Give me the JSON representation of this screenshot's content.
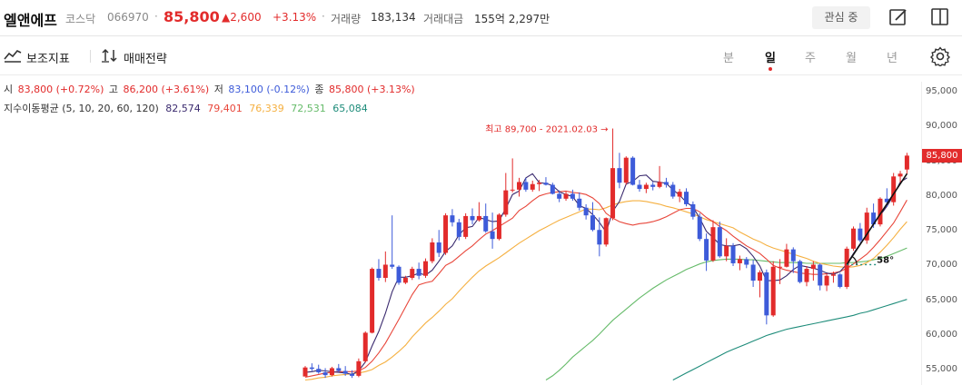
{
  "header": {
    "stock_name": "엘앤에프",
    "market": "코스닥",
    "code": "066970",
    "separator": "·",
    "price": "85,800",
    "change": "▲2,600",
    "change_pct": "+3.13%",
    "volume_label": "거래량",
    "volume": "183,134",
    "amount_label": "거래대금",
    "amount": "155억 2,297만",
    "favorite_label": "관심 중",
    "icons": [
      "edit-icon",
      "split-view-icon"
    ]
  },
  "toolbar": {
    "indicator_label": "보조지표",
    "trade_strategy_label": "매매전략",
    "periods": [
      "분",
      "일",
      "주",
      "월",
      "년"
    ],
    "active_period": "일",
    "icons": [
      "indicator-chart-icon",
      "arrows-updown-icon",
      "settings-icon"
    ]
  },
  "ohlc": {
    "open_label": "시",
    "open": "83,800 (+0.72%)",
    "high_label": "고",
    "high": "86,200 (+3.61%)",
    "low_label": "저",
    "low": "83,100 (-0.12%)",
    "close_label": "종",
    "close": "85,800 (+3.13%)"
  },
  "ma": {
    "label": "지수이동평균 (5, 10, 20, 60, 120)",
    "values": [
      "82,574",
      "79,401",
      "76,339",
      "72,531",
      "65,084"
    ],
    "colors": [
      "#3a2a6e",
      "#e8463a",
      "#f5b041",
      "#66bb6a",
      "#1e8c7a"
    ]
  },
  "colors": {
    "up": "#e22b2b",
    "down": "#3d5bd9"
  },
  "chart_data": {
    "type": "candlestick",
    "y_ticks": [
      "95,000",
      "90,000",
      "85,000",
      "80,000",
      "75,000",
      "70,000",
      "65,000",
      "60,000",
      "55,000"
    ],
    "ylim": [
      53500,
      96500
    ],
    "current_price_tag": "85,800",
    "high_annotation": "최고 89,700 - 2021.02.03 →",
    "trend_angle_label": "58°",
    "candles": [
      [
        54000,
        55500,
        54200,
        55300
      ],
      [
        55300,
        55900,
        54800,
        55100
      ],
      [
        55100,
        55700,
        54400,
        54600
      ],
      [
        54600,
        55200,
        53800,
        54200
      ],
      [
        54200,
        55400,
        54000,
        55200
      ],
      [
        55200,
        55800,
        54600,
        54800
      ],
      [
        54800,
        55500,
        54100,
        54400
      ],
      [
        54400,
        54900,
        53800,
        54100
      ],
      [
        54100,
        56600,
        53900,
        56200
      ],
      [
        56200,
        60500,
        56000,
        60300
      ],
      [
        60300,
        69700,
        60200,
        69500
      ],
      [
        69500,
        70900,
        67800,
        68200
      ],
      [
        68200,
        72000,
        67600,
        70100
      ],
      [
        70100,
        77200,
        69500,
        69800
      ],
      [
        69800,
        70000,
        67200,
        67500
      ],
      [
        67500,
        68500,
        67300,
        68200
      ],
      [
        68200,
        69800,
        67900,
        69500
      ],
      [
        69500,
        70400,
        68000,
        68500
      ],
      [
        68500,
        71000,
        68200,
        70600
      ],
      [
        70600,
        73900,
        70300,
        73300
      ],
      [
        73300,
        75100,
        71200,
        71800
      ],
      [
        71800,
        77500,
        71500,
        77200
      ],
      [
        77200,
        78100,
        75600,
        76200
      ],
      [
        76200,
        76700,
        73600,
        74100
      ],
      [
        74100,
        77500,
        73800,
        77100
      ],
      [
        77100,
        78200,
        75900,
        76500
      ],
      [
        76500,
        79100,
        76300,
        77100
      ],
      [
        77100,
        78900,
        74700,
        74900
      ],
      [
        74900,
        77600,
        72400,
        73800
      ],
      [
        73800,
        77500,
        73600,
        77300
      ],
      [
        77300,
        83300,
        77000,
        80800
      ],
      [
        80800,
        85400,
        80500,
        80900
      ],
      [
        80900,
        82600,
        79900,
        82000
      ],
      [
        82000,
        82600,
        80600,
        80900
      ],
      [
        80900,
        82200,
        80600,
        81700
      ],
      [
        81700,
        82300,
        80700,
        81900
      ],
      [
        81900,
        82700,
        81500,
        81600
      ],
      [
        81600,
        81900,
        80200,
        80300
      ],
      [
        80300,
        80800,
        79100,
        79600
      ],
      [
        79600,
        80600,
        79300,
        80300
      ],
      [
        80300,
        80900,
        79300,
        79600
      ],
      [
        79600,
        80500,
        77900,
        78300
      ],
      [
        78300,
        78800,
        76600,
        77200
      ],
      [
        77200,
        79100,
        74900,
        75100
      ],
      [
        75100,
        76900,
        71300,
        73000
      ],
      [
        73000,
        76900,
        72700,
        76800
      ],
      [
        76800,
        89700,
        76500,
        84000
      ],
      [
        84000,
        86200,
        81100,
        81900
      ],
      [
        81900,
        85700,
        81600,
        85500
      ],
      [
        85500,
        85700,
        81500,
        81600
      ],
      [
        81600,
        82300,
        80600,
        81000
      ],
      [
        81000,
        81900,
        80400,
        81600
      ],
      [
        81600,
        82000,
        80800,
        81300
      ],
      [
        81300,
        84300,
        81100,
        82000
      ],
      [
        82000,
        82600,
        81200,
        81600
      ],
      [
        81600,
        82000,
        79600,
        79900
      ],
      [
        79900,
        81000,
        79100,
        80600
      ],
      [
        80600,
        81100,
        78500,
        78800
      ],
      [
        78800,
        79200,
        76600,
        77000
      ],
      [
        77000,
        77500,
        73500,
        73800
      ],
      [
        73800,
        74600,
        69200,
        70700
      ],
      [
        70700,
        76500,
        70500,
        75500
      ],
      [
        75500,
        76300,
        71100,
        71300
      ],
      [
        71300,
        73900,
        70600,
        72800
      ],
      [
        72800,
        73200,
        69900,
        70300
      ],
      [
        70300,
        71400,
        69300,
        70900
      ],
      [
        70900,
        71200,
        69600,
        70100
      ],
      [
        70100,
        70800,
        66900,
        67800
      ],
      [
        67800,
        69300,
        65400,
        69000
      ],
      [
        69000,
        69400,
        61500,
        62800
      ],
      [
        62800,
        70600,
        62600,
        69800
      ],
      [
        69800,
        70900,
        67300,
        69800
      ],
      [
        69800,
        73100,
        69700,
        72300
      ],
      [
        72300,
        72600,
        68900,
        70600
      ],
      [
        70600,
        70800,
        67400,
        67600
      ],
      [
        67600,
        69900,
        67000,
        69500
      ],
      [
        69500,
        70600,
        67800,
        70100
      ],
      [
        70100,
        70300,
        66400,
        67100
      ],
      [
        67100,
        68800,
        66300,
        68500
      ],
      [
        68500,
        69100,
        67500,
        68700
      ],
      [
        68700,
        68900,
        66700,
        66900
      ],
      [
        66900,
        72700,
        66600,
        72400
      ],
      [
        72400,
        75600,
        72100,
        75300
      ],
      [
        75300,
        76100,
        73300,
        73600
      ],
      [
        73600,
        78300,
        73100,
        77600
      ],
      [
        77600,
        78900,
        75400,
        75900
      ],
      [
        75900,
        79800,
        75600,
        79600
      ],
      [
        79600,
        81100,
        78400,
        79100
      ],
      [
        79100,
        83300,
        78600,
        82800
      ],
      [
        82800,
        83600,
        81900,
        83200
      ],
      [
        83800,
        86200,
        83100,
        85800
      ]
    ],
    "ma_lines": {
      "ma5": [
        54600,
        54700,
        54900,
        54800,
        54700,
        54600,
        54500,
        54300,
        54800,
        56100,
        58400,
        60500,
        63100,
        66200,
        68300,
        68300,
        68500,
        68900,
        68600,
        69300,
        70600,
        72000,
        72800,
        74400,
        75400,
        75600,
        76900,
        76600,
        76300,
        76400,
        78200,
        80200,
        80700,
        82600,
        83200,
        81900,
        81800,
        81500,
        80600,
        80200,
        79900,
        78600,
        78200,
        77300,
        76200,
        74800,
        77800,
        79200,
        81700,
        82100,
        82900,
        83000,
        82100,
        82000,
        81800,
        80900,
        80100,
        79100,
        78400,
        76800,
        74900,
        74000,
        73000,
        72800,
        72800,
        73000,
        72400,
        71300,
        69900,
        67800,
        67800,
        67900,
        68500,
        69400,
        70000,
        69800,
        69600,
        69300,
        68900,
        68700,
        69100,
        70200,
        71700,
        73100,
        74400,
        76000,
        77200,
        78500,
        80100,
        82000,
        82600
      ],
      "ma10": [
        53900,
        54100,
        54300,
        54500,
        54600,
        54700,
        54700,
        54700,
        54800,
        55300,
        56200,
        57400,
        58800,
        60500,
        62200,
        64000,
        65800,
        67200,
        67500,
        67700,
        68800,
        70000,
        70500,
        71300,
        72100,
        72800,
        73700,
        74500,
        75000,
        75600,
        76200,
        76800,
        77900,
        78500,
        79300,
        80000,
        80300,
        80500,
        80600,
        80700,
        80500,
        80400,
        80200,
        79700,
        78900,
        77500,
        76800,
        76300,
        76000,
        75800,
        76000,
        76100,
        76300,
        76600,
        77000,
        77500,
        78000,
        78200,
        78200,
        77700,
        76900,
        76300,
        75600,
        75000,
        74200,
        73500,
        72800,
        72300,
        71700,
        70900,
        70000,
        69600,
        69300,
        69100,
        68900,
        68800,
        68700,
        68700,
        68800,
        68900,
        69100,
        69600,
        70200,
        70900,
        71600,
        72600,
        73700,
        74900,
        76100,
        77700,
        79400
      ],
      "ma20": [
        53500,
        53600,
        53800,
        53900,
        54100,
        54200,
        54300,
        54400,
        54500,
        54700,
        55000,
        55600,
        56100,
        56800,
        57600,
        58500,
        59700,
        60700,
        61700,
        62500,
        63400,
        64400,
        65200,
        66300,
        67300,
        68300,
        69200,
        69900,
        70500,
        71100,
        71800,
        72500,
        73200,
        73800,
        74400,
        75000,
        75500,
        76000,
        76500,
        76900,
        77300,
        77700,
        78100,
        78100,
        78000,
        78300,
        78700,
        79000,
        79200,
        79300,
        79300,
        79200,
        79000,
        78800,
        78500,
        78300,
        78000,
        77700,
        77400,
        77000,
        76600,
        76300,
        76000,
        75700,
        75400,
        74800,
        74300,
        73800,
        73400,
        72900,
        72500,
        72200,
        71900,
        71600,
        71300,
        71000,
        70600,
        70300,
        70100,
        69900,
        69800,
        69700,
        69800,
        70000,
        70400,
        71000,
        71900,
        72900,
        74000,
        75200,
        76300
      ],
      "ma60": [
        null,
        null,
        null,
        null,
        null,
        null,
        null,
        null,
        null,
        null,
        null,
        null,
        null,
        null,
        null,
        null,
        null,
        null,
        null,
        null,
        null,
        null,
        null,
        null,
        null,
        null,
        null,
        null,
        null,
        null,
        null,
        null,
        null,
        null,
        null,
        null,
        53500,
        54100,
        54900,
        55800,
        56800,
        57600,
        58400,
        59200,
        60100,
        61100,
        62100,
        62900,
        63700,
        64500,
        65300,
        66000,
        66700,
        67300,
        67900,
        68400,
        68900,
        69400,
        69800,
        70200,
        70500,
        70700,
        70800,
        70900,
        70900,
        70900,
        70800,
        70800,
        70700,
        70600,
        70500,
        70400,
        70400,
        70400,
        70400,
        70300,
        70300,
        70300,
        70300,
        70300,
        70300,
        70400,
        70400,
        70500,
        70600,
        70800,
        71000,
        71300,
        71700,
        72100,
        72500
      ],
      "ma120": [
        null,
        null,
        null,
        null,
        null,
        null,
        null,
        null,
        null,
        null,
        null,
        null,
        null,
        null,
        null,
        null,
        null,
        null,
        null,
        null,
        null,
        null,
        null,
        null,
        null,
        null,
        null,
        null,
        null,
        null,
        null,
        null,
        null,
        null,
        null,
        null,
        null,
        null,
        null,
        null,
        null,
        null,
        null,
        null,
        null,
        null,
        null,
        null,
        null,
        null,
        null,
        null,
        null,
        null,
        null,
        53500,
        54000,
        54500,
        55000,
        55500,
        56000,
        56500,
        57000,
        57500,
        57900,
        58300,
        58700,
        59100,
        59500,
        59900,
        60200,
        60500,
        60800,
        61000,
        61200,
        61400,
        61600,
        61800,
        62000,
        62200,
        62400,
        62600,
        62800,
        63100,
        63300,
        63600,
        63900,
        64200,
        64500,
        64800,
        65100
      ]
    },
    "trend_line": [
      [
        81,
        70100
      ],
      [
        90,
        83200
      ]
    ]
  }
}
